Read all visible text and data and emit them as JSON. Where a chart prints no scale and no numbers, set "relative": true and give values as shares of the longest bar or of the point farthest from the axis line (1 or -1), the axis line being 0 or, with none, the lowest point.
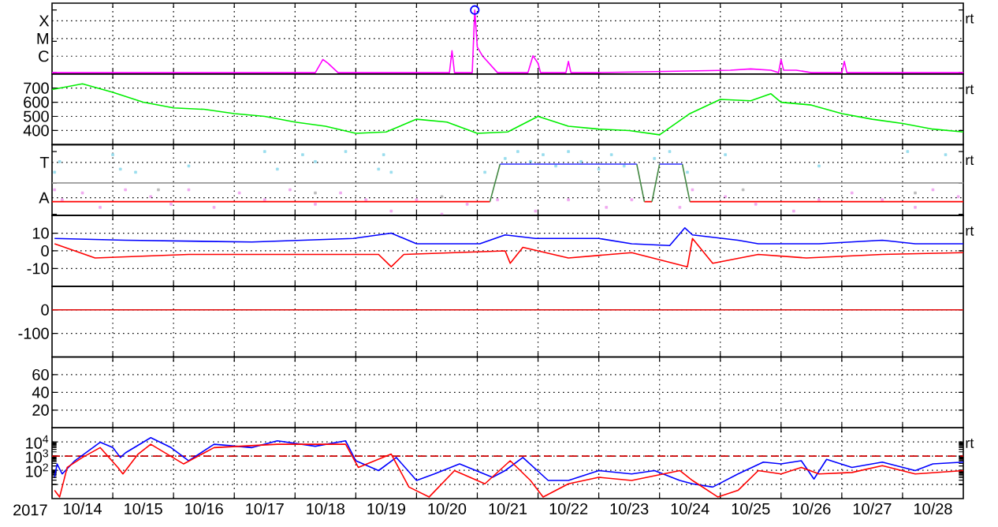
{
  "chart_data": [
    {
      "type": "line",
      "relative": true,
      "xlim": [
        "2017-10-14",
        "2017-10-29"
      ],
      "grid": "x",
      "tick_labels": false,
      "xticks": [
        {
          "value": "2017-10-15",
          "label": null
        },
        {
          "value": "2017-10-16",
          "label": null
        },
        {
          "value": "2017-10-17",
          "label": null
        },
        {
          "value": "2017-10-18",
          "label": null
        },
        {
          "value": "2017-10-19",
          "label": null
        },
        {
          "value": "2017-10-20",
          "label": null
        },
        {
          "value": "2017-10-21",
          "label": null
        },
        {
          "value": "2017-10-22",
          "label": null
        },
        {
          "value": "2017-10-23",
          "label": null
        },
        {
          "value": "2017-10-24",
          "label": null
        },
        {
          "value": "2017-10-25",
          "label": null
        },
        {
          "value": "2017-10-26",
          "label": null
        },
        {
          "value": "2017-10-27",
          "label": null
        },
        {
          "value": "2017-10-28",
          "label": null
        }
      ],
      "annotations": [
        "rt",
        "C",
        "M",
        "X"
      ],
      "series": [
        {
          "type": "line",
          "color": "#ff00ff",
          "x": [
            "2017-10-14T00:00",
            "2017-10-18T08:00",
            "2017-10-18T11:00",
            "2017-10-18T13:00",
            "2017-10-18T17:00",
            "2017-10-19T00:00",
            "2017-10-20T13:00",
            "2017-10-20T14:00",
            "2017-10-20T15:00",
            "2017-10-20T18:00",
            "2017-10-20T22:00",
            "2017-10-20T23:00",
            "2017-10-21T00:00",
            "2017-10-21T02:00",
            "2017-10-21T06:00",
            "2017-10-21T08:00",
            "2017-10-21T12:00",
            "2017-10-21T20:00",
            "2017-10-21T22:00",
            "2017-10-22T00:00",
            "2017-10-22T01:00",
            "2017-10-22T06:00",
            "2017-10-22T11:00",
            "2017-10-22T12:00",
            "2017-10-22T13:00",
            "2017-10-23T00:00",
            "2017-10-25T04:00",
            "2017-10-25T12:00",
            "2017-10-25T20:00",
            "2017-10-25T23:00",
            "2017-10-26T00:00",
            "2017-10-26T01:00",
            "2017-10-26T06:00",
            "2017-10-26T12:00",
            "2017-10-27T00:00",
            "2017-10-27T01:00",
            "2017-10-27T02:00",
            "2017-10-29T00:00"
          ],
          "values": [
            0,
            0,
            0.21,
            0.15,
            0,
            0,
            0,
            0.35,
            0,
            0,
            0,
            1,
            0.41,
            0.27,
            0.09,
            0,
            0,
            0,
            0.27,
            0.15,
            0,
            0,
            0,
            0.18,
            0,
            0,
            0.04,
            0.06,
            0.04,
            0,
            0.21,
            0.04,
            0.04,
            0,
            0,
            0.18,
            0,
            0
          ]
        },
        {
          "type": "scatter",
          "marker": "circle",
          "color": "#0000ff",
          "x": [
            "2017-10-20T23:00"
          ],
          "values": [
            1
          ]
        }
      ]
    },
    {
      "type": "line",
      "xlim": [
        "2017-10-14",
        "2017-10-29"
      ],
      "ylim": [
        300,
        800
      ],
      "grid": true,
      "tick_labels": "y",
      "xticks": [
        {
          "value": "2017-10-15",
          "label": null
        },
        {
          "value": "2017-10-16",
          "label": null
        },
        {
          "value": "2017-10-17",
          "label": null
        },
        {
          "value": "2017-10-18",
          "label": null
        },
        {
          "value": "2017-10-19",
          "label": null
        },
        {
          "value": "2017-10-20",
          "label": null
        },
        {
          "value": "2017-10-21",
          "label": null
        },
        {
          "value": "2017-10-22",
          "label": null
        },
        {
          "value": "2017-10-23",
          "label": null
        },
        {
          "value": "2017-10-24",
          "label": null
        },
        {
          "value": "2017-10-25",
          "label": null
        },
        {
          "value": "2017-10-26",
          "label": null
        },
        {
          "value": "2017-10-27",
          "label": null
        },
        {
          "value": "2017-10-28",
          "label": null
        }
      ],
      "yticks": [
        400,
        500,
        600,
        700
      ],
      "annotations": [
        "rt"
      ],
      "series": [
        {
          "color": "#00ee00",
          "x": [
            "2017-10-14T00:00",
            "2017-10-14T12:00",
            "2017-10-15T00:00",
            "2017-10-15T12:00",
            "2017-10-16T00:00",
            "2017-10-16T12:00",
            "2017-10-17T00:00",
            "2017-10-17T12:00",
            "2017-10-18T00:00",
            "2017-10-18T12:00",
            "2017-10-19T00:00",
            "2017-10-19T12:00",
            "2017-10-20T00:00",
            "2017-10-20T12:00",
            "2017-10-21T00:00",
            "2017-10-21T12:00",
            "2017-10-22T00:00",
            "2017-10-22T12:00",
            "2017-10-23T00:00",
            "2017-10-23T12:00",
            "2017-10-24T00:00",
            "2017-10-24T12:00",
            "2017-10-25T00:00",
            "2017-10-25T12:00",
            "2017-10-25T20:00",
            "2017-10-26T00:00",
            "2017-10-26T12:00",
            "2017-10-27T00:00",
            "2017-10-27T12:00",
            "2017-10-28T00:00",
            "2017-10-28T12:00",
            "2017-10-29T00:00"
          ],
          "values": [
            690,
            730,
            670,
            600,
            560,
            550,
            520,
            500,
            460,
            430,
            380,
            390,
            480,
            460,
            380,
            390,
            500,
            430,
            410,
            400,
            370,
            520,
            620,
            610,
            660,
            600,
            580,
            520,
            480,
            450,
            410,
            390
          ]
        }
      ]
    },
    {
      "type": "line",
      "relative": true,
      "xlim": [
        "2017-10-14",
        "2017-10-29"
      ],
      "grid": "x",
      "tick_labels": false,
      "xticks": [
        {
          "value": "2017-10-15",
          "label": null
        },
        {
          "value": "2017-10-16",
          "label": null
        },
        {
          "value": "2017-10-17",
          "label": null
        },
        {
          "value": "2017-10-18",
          "label": null
        },
        {
          "value": "2017-10-19",
          "label": null
        },
        {
          "value": "2017-10-20",
          "label": null
        },
        {
          "value": "2017-10-21",
          "label": null
        },
        {
          "value": "2017-10-22",
          "label": null
        },
        {
          "value": "2017-10-23",
          "label": null
        },
        {
          "value": "2017-10-24",
          "label": null
        },
        {
          "value": "2017-10-25",
          "label": null
        },
        {
          "value": "2017-10-26",
          "label": null
        },
        {
          "value": "2017-10-27",
          "label": null
        },
        {
          "value": "2017-10-28",
          "label": null
        }
      ],
      "ref_lines": [
        {
          "axis": "y",
          "value": 0.5,
          "color": "#999999"
        }
      ],
      "annotations": [
        "rt",
        "A",
        "T"
      ],
      "series": [
        {
          "type": "scatter",
          "marker": "square",
          "color": "#99ddee",
          "x": [
            "2017-10-14T01:00",
            "2017-10-14T03:00",
            "2017-10-15T00:00",
            "2017-10-15T03:00",
            "2017-10-15T09:00",
            "2017-10-16T06:00",
            "2017-10-17T12:00",
            "2017-10-17T17:00",
            "2017-10-18T03:00",
            "2017-10-18T08:00",
            "2017-10-18T20:00",
            "2017-10-19T09:00",
            "2017-10-19T11:00",
            "2017-10-19T14:00",
            "2017-10-21T03:00",
            "2017-10-21T11:00",
            "2017-10-21T16:00",
            "2017-10-21T21:00",
            "2017-10-22T02:00",
            "2017-10-22T07:00",
            "2017-10-22T12:00",
            "2017-10-22T17:00",
            "2017-10-23T00:00",
            "2017-10-23T05:00",
            "2017-10-23T10:00",
            "2017-10-23T22:00",
            "2017-10-24T04:00",
            "2017-10-24T11:00",
            "2017-10-25T02:00",
            "2017-10-26T15:00",
            "2017-10-28T02:00",
            "2017-10-28T17:00"
          ],
          "values": [
            0.67,
            0.84,
            0.95,
            0.72,
            0.67,
            0.77,
            1,
            0.72,
            0.95,
            0.84,
            1,
            0.72,
            0.95,
            0.67,
            0.67,
            0.89,
            1,
            0.84,
            0.95,
            0.77,
            1,
            0.84,
            0.72,
            0.95,
            0.77,
            0.89,
            1,
            0.67,
            0.95,
            0.77,
            1,
            0.95
          ]
        },
        {
          "type": "scatter",
          "marker": "square",
          "color": "#f0a8f0",
          "x": [
            "2017-10-14T01:00",
            "2017-10-14T04:00",
            "2017-10-14T12:00",
            "2017-10-14T19:00",
            "2017-10-15T05:00",
            "2017-10-15T15:00",
            "2017-10-15T23:00",
            "2017-10-16T06:00",
            "2017-10-16T16:00",
            "2017-10-17T02:00",
            "2017-10-17T12:00",
            "2017-10-17T22:00",
            "2017-10-18T08:00",
            "2017-10-18T18:00",
            "2017-10-19T04:00",
            "2017-10-19T14:00",
            "2017-10-20T00:00",
            "2017-10-20T10:00",
            "2017-10-20T20:00",
            "2017-10-21T08:00",
            "2017-10-21T23:00",
            "2017-10-22T12:00",
            "2017-10-23T03:00",
            "2017-10-23T13:00",
            "2017-10-24T08:00",
            "2017-10-24T13:00",
            "2017-10-25T02:00",
            "2017-10-25T14:00",
            "2017-10-26T05:00",
            "2017-10-26T15:00",
            "2017-10-27T04:00",
            "2017-10-27T16:00",
            "2017-10-28T05:00",
            "2017-10-28T12:00",
            "2017-10-28T22:00"
          ],
          "values": [
            0.39,
            0.23,
            0.34,
            0.11,
            0.39,
            0.28,
            0.16,
            0.39,
            0.11,
            0.34,
            0.23,
            0.39,
            0.16,
            0.34,
            0.23,
            0.05,
            0.23,
            0,
            0.16,
            0.23,
            0.05,
            0.23,
            0.11,
            0.23,
            0.11,
            0.39,
            0.28,
            0.16,
            0.05,
            0.23,
            0.34,
            0.23,
            0.11,
            0.39,
            0.28
          ]
        },
        {
          "type": "scatter",
          "marker": "square",
          "color": "#bbbbbb",
          "x": [
            "2017-10-15T18:00",
            "2017-10-18T08:00",
            "2017-10-20T10:00",
            "2017-10-23T00:00",
            "2017-10-25T09:00",
            "2017-10-28T05:00"
          ],
          "values": [
            0.39,
            0.34,
            0.28,
            0.39,
            0.39,
            0.34
          ]
        },
        {
          "type": "line",
          "color": "#ff0000",
          "x": [
            "2017-10-14T00:00",
            "2017-10-21T05:00",
            "2017-10-22T00:00",
            "2017-10-23T18:00",
            "2017-10-23T21:00",
            "2017-10-24T00:00",
            "2017-10-24T12:00",
            "2017-10-29T00:00"
          ],
          "values": [
            0.2,
            0.2,
            null,
            0.2,
            0.2,
            null,
            0.2,
            0.2
          ]
        },
        {
          "type": "line",
          "color": "#448844",
          "x": [
            "2017-10-21T05:00",
            "2017-10-21T09:00",
            "2017-10-22T00:00",
            "2017-10-23T15:00",
            "2017-10-23T18:00",
            "2017-10-23T19:00",
            "2017-10-23T21:00",
            "2017-10-24T00:00",
            "2017-10-24T04:00",
            "2017-10-24T09:00",
            "2017-10-24T12:00"
          ],
          "values": [
            0.2,
            0.8,
            null,
            0.8,
            0.2,
            null,
            0.2,
            0.8,
            null,
            0.8,
            0.2
          ]
        },
        {
          "type": "line",
          "color": "#3333ff",
          "x": [
            "2017-10-21T09:00",
            "2017-10-23T15:00",
            "2017-10-23T18:00",
            "2017-10-24T00:00",
            "2017-10-24T09:00"
          ],
          "values": [
            0.8,
            0.8,
            null,
            0.8,
            0.8
          ]
        }
      ]
    },
    {
      "type": "line",
      "xlim": [
        "2017-10-14",
        "2017-10-29"
      ],
      "ylim": [
        -20,
        20
      ],
      "grid": true,
      "tick_labels": "y",
      "xticks": [
        {
          "value": "2017-10-15",
          "label": null
        },
        {
          "value": "2017-10-16",
          "label": null
        },
        {
          "value": "2017-10-17",
          "label": null
        },
        {
          "value": "2017-10-18",
          "label": null
        },
        {
          "value": "2017-10-19",
          "label": null
        },
        {
          "value": "2017-10-20",
          "label": null
        },
        {
          "value": "2017-10-21",
          "label": null
        },
        {
          "value": "2017-10-22",
          "label": null
        },
        {
          "value": "2017-10-23",
          "label": null
        },
        {
          "value": "2017-10-24",
          "label": null
        },
        {
          "value": "2017-10-25",
          "label": null
        },
        {
          "value": "2017-10-26",
          "label": null
        },
        {
          "value": "2017-10-27",
          "label": null
        },
        {
          "value": "2017-10-28",
          "label": null
        }
      ],
      "yticks": [
        -10,
        0,
        10
      ],
      "annotations": [
        "rt"
      ],
      "series": [
        {
          "color": "#0000ff",
          "x": [
            "2017-10-14T01:00",
            "2017-10-15T05:00",
            "2017-10-17T07:00",
            "2017-10-18T23:00",
            "2017-10-19T14:00",
            "2017-10-20T00:00",
            "2017-10-21T01:00",
            "2017-10-21T11:00",
            "2017-10-21T23:00",
            "2017-10-23T00:00",
            "2017-10-23T13:00",
            "2017-10-24T04:00",
            "2017-10-24T10:00",
            "2017-10-24T13:00",
            "2017-10-25T07:00",
            "2017-10-25T15:00",
            "2017-10-26T15:00",
            "2017-10-27T16:00",
            "2017-10-28T05:00",
            "2017-10-29T00:00"
          ],
          "values": [
            7,
            6,
            5,
            7,
            10,
            4,
            4,
            9,
            7,
            7,
            4,
            3,
            13,
            9,
            6,
            4,
            4,
            6,
            4,
            4
          ]
        },
        {
          "color": "#ff0000",
          "x": [
            "2017-10-14T01:00",
            "2017-10-14T17:00",
            "2017-10-16T06:00",
            "2017-10-19T09:00",
            "2017-10-19T14:00",
            "2017-10-19T19:00",
            "2017-10-21T11:00",
            "2017-10-21T13:00",
            "2017-10-21T18:00",
            "2017-10-22T12:00",
            "2017-10-23T13:00",
            "2017-10-24T11:00",
            "2017-10-24T13:00",
            "2017-10-24T21:00",
            "2017-10-25T15:00",
            "2017-10-26T10:00",
            "2017-10-27T16:00",
            "2017-10-29T00:00"
          ],
          "values": [
            4,
            -4,
            -2,
            -2,
            -9,
            -2,
            0,
            -7,
            2,
            -4,
            -1,
            -9,
            7,
            -7,
            -2,
            -4,
            -2,
            -1
          ]
        }
      ]
    },
    {
      "type": "line",
      "xlim": [
        "2017-10-14",
        "2017-10-29"
      ],
      "ylim": [
        -200,
        100
      ],
      "grid": true,
      "tick_labels": "y",
      "xticks": [
        {
          "value": "2017-10-15",
          "label": null
        },
        {
          "value": "2017-10-16",
          "label": null
        },
        {
          "value": "2017-10-17",
          "label": null
        },
        {
          "value": "2017-10-18",
          "label": null
        },
        {
          "value": "2017-10-19",
          "label": null
        },
        {
          "value": "2017-10-20",
          "label": null
        },
        {
          "value": "2017-10-21",
          "label": null
        },
        {
          "value": "2017-10-22",
          "label": null
        },
        {
          "value": "2017-10-23",
          "label": null
        },
        {
          "value": "2017-10-24",
          "label": null
        },
        {
          "value": "2017-10-25",
          "label": null
        },
        {
          "value": "2017-10-26",
          "label": null
        },
        {
          "value": "2017-10-27",
          "label": null
        },
        {
          "value": "2017-10-28",
          "label": null
        }
      ],
      "yticks": [
        -100,
        0
      ],
      "series": [
        {
          "color": "#dd0000",
          "x": [
            "2017-10-14T00:00",
            "2017-10-29T00:00"
          ],
          "values": [
            0,
            0
          ]
        }
      ]
    },
    {
      "type": "line",
      "xlim": [
        "2017-10-14",
        "2017-10-29"
      ],
      "ylim": [
        0,
        80
      ],
      "grid": true,
      "tick_labels": "y",
      "xticks": [
        {
          "value": "2017-10-15",
          "label": null
        },
        {
          "value": "2017-10-16",
          "label": null
        },
        {
          "value": "2017-10-17",
          "label": null
        },
        {
          "value": "2017-10-18",
          "label": null
        },
        {
          "value": "2017-10-19",
          "label": null
        },
        {
          "value": "2017-10-20",
          "label": null
        },
        {
          "value": "2017-10-21",
          "label": null
        },
        {
          "value": "2017-10-22",
          "label": null
        },
        {
          "value": "2017-10-23",
          "label": null
        },
        {
          "value": "2017-10-24",
          "label": null
        },
        {
          "value": "2017-10-25",
          "label": null
        },
        {
          "value": "2017-10-26",
          "label": null
        },
        {
          "value": "2017-10-27",
          "label": null
        },
        {
          "value": "2017-10-28",
          "label": null
        }
      ],
      "yticks": [
        20,
        40,
        60
      ]
    },
    {
      "type": "line",
      "xlim": [
        "2017-10-14",
        "2017-10-29"
      ],
      "ylim": [
        1,
        100000
      ],
      "log": "y",
      "grid": true,
      "xlabel": "2017",
      "xticks": [
        {
          "value": "2017-10-15",
          "label": null
        },
        {
          "value": "2017-10-16",
          "label": null
        },
        {
          "value": "2017-10-17",
          "label": null
        },
        {
          "value": "2017-10-18",
          "label": null
        },
        {
          "value": "2017-10-19",
          "label": null
        },
        {
          "value": "2017-10-20",
          "label": null
        },
        {
          "value": "2017-10-21",
          "label": null
        },
        {
          "value": "2017-10-22",
          "label": null
        },
        {
          "value": "2017-10-23",
          "label": null
        },
        {
          "value": "2017-10-24",
          "label": null
        },
        {
          "value": "2017-10-25",
          "label": null
        },
        {
          "value": "2017-10-26",
          "label": null
        },
        {
          "value": "2017-10-27",
          "label": null
        },
        {
          "value": "2017-10-28",
          "label": null
        },
        {
          "value": "2017-10-14T12:00",
          "label": "10/14"
        },
        {
          "value": "2017-10-15T12:00",
          "label": "10/15"
        },
        {
          "value": "2017-10-16T12:00",
          "label": "10/16"
        },
        {
          "value": "2017-10-17T12:00",
          "label": "10/17"
        },
        {
          "value": "2017-10-18T12:00",
          "label": "10/18"
        },
        {
          "value": "2017-10-19T12:00",
          "label": "10/19"
        },
        {
          "value": "2017-10-20T12:00",
          "label": "10/20"
        },
        {
          "value": "2017-10-21T12:00",
          "label": "10/21"
        },
        {
          "value": "2017-10-22T12:00",
          "label": "10/22"
        },
        {
          "value": "2017-10-23T12:00",
          "label": "10/23"
        },
        {
          "value": "2017-10-24T12:00",
          "label": "10/24"
        },
        {
          "value": "2017-10-25T12:00",
          "label": "10/25"
        },
        {
          "value": "2017-10-26T12:00",
          "label": "10/26"
        },
        {
          "value": "2017-10-27T12:00",
          "label": "10/27"
        },
        {
          "value": "2017-10-28T12:00",
          "label": "10/28"
        }
      ],
      "yticks": [
        {
          "value": 10,
          "label": null
        },
        {
          "value": 100,
          "label": "10$^{2}$"
        },
        {
          "value": 1000,
          "label": "10$^{3}$"
        },
        {
          "value": 10000,
          "label": "10$^{4}$"
        }
      ],
      "ref_lines": [
        {
          "axis": "y",
          "value": 1000,
          "color": "#cc0000",
          "line_style": "dashed"
        }
      ],
      "annotations": [
        "rt"
      ],
      "series": [
        {
          "color": "#0000ff",
          "x": [
            "2017-10-14T01:00",
            "2017-10-14T02:00",
            "2017-10-14T04:00",
            "2017-10-14T09:00",
            "2017-10-14T19:00",
            "2017-10-15T00:00",
            "2017-10-15T03:00",
            "2017-10-15T05:00",
            "2017-10-15T15:00",
            "2017-10-15T23:00",
            "2017-10-16T06:00",
            "2017-10-16T16:00",
            "2017-10-17T07:00",
            "2017-10-17T17:00",
            "2017-10-18T08:00",
            "2017-10-18T20:00",
            "2017-10-19T00:00",
            "2017-10-19T09:00",
            "2017-10-19T16:00",
            "2017-10-20T00:00",
            "2017-10-20T07:00",
            "2017-10-20T17:00",
            "2017-10-21T06:00",
            "2017-10-21T11:00",
            "2017-10-21T18:00",
            "2017-10-22T04:00",
            "2017-10-22T12:00",
            "2017-10-23T00:00",
            "2017-10-23T13:00",
            "2017-10-23T22:00",
            "2017-10-24T08:00",
            "2017-10-24T13:00",
            "2017-10-24T21:00",
            "2017-10-25T07:00",
            "2017-10-25T17:00",
            "2017-10-26T00:00",
            "2017-10-26T08:00",
            "2017-10-26T13:00",
            "2017-10-26T18:00",
            "2017-10-27T04:00",
            "2017-10-27T16:00",
            "2017-10-28T05:00",
            "2017-10-28T12:00",
            "2017-10-29T00:00"
          ],
          "values": [
            32,
            280,
            55,
            470,
            9500,
            4000,
            800,
            1700,
            20000,
            4000,
            470,
            6900,
            4000,
            12000,
            5000,
            12000,
            470,
            95,
            800,
            19,
            55,
            280,
            32,
            95,
            800,
            19,
            19,
            95,
            55,
            95,
            19,
            11,
            6.5,
            55,
            380,
            280,
            470,
            24,
            590,
            160,
            380,
            95,
            280,
            380
          ]
        },
        {
          "color": "#ff0000",
          "x": [
            "2017-10-14T01:00",
            "2017-10-14T03:00",
            "2017-10-14T06:00",
            "2017-10-14T12:00",
            "2017-10-14T19:00",
            "2017-10-15T02:00",
            "2017-10-15T04:00",
            "2017-10-15T10:00",
            "2017-10-15T15:00",
            "2017-10-16T04:00",
            "2017-10-16T16:00",
            "2017-10-17T17:00",
            "2017-10-18T20:00",
            "2017-10-19T01:00",
            "2017-10-19T14:00",
            "2017-10-19T21:00",
            "2017-10-20T05:00",
            "2017-10-20T15:00",
            "2017-10-21T03:00",
            "2017-10-21T13:00",
            "2017-10-21T21:00",
            "2017-10-22T02:00",
            "2017-10-22T12:00",
            "2017-10-23T00:00",
            "2017-10-23T13:00",
            "2017-10-24T08:00",
            "2017-10-24T13:00",
            "2017-10-24T23:00",
            "2017-10-25T07:00",
            "2017-10-25T15:00",
            "2017-10-26T00:00",
            "2017-10-26T08:00",
            "2017-10-26T15:00",
            "2017-10-27T04:00",
            "2017-10-27T16:00",
            "2017-10-28T05:00",
            "2017-10-29T00:00"
          ],
          "values": [
            3.8,
            1.3,
            160,
            800,
            4000,
            160,
            55,
            1400,
            6900,
            280,
            4000,
            6900,
            6900,
            160,
            1400,
            6.5,
            1.3,
            95,
            11,
            470,
            19,
            1.3,
            11,
            32,
            19,
            95,
            19,
            1.3,
            3.8,
            95,
            55,
            160,
            55,
            70,
            210,
            55,
            95
          ]
        }
      ]
    }
  ]
}
